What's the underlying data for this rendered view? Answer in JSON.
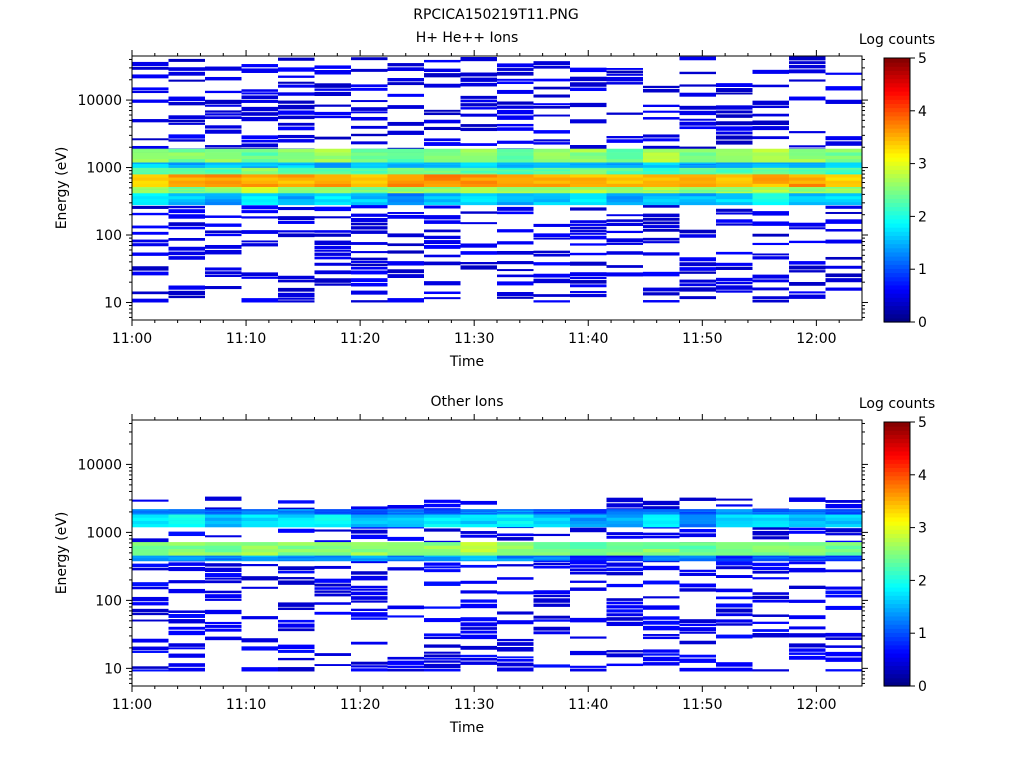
{
  "figure_title": "RPCICA150219T11.PNG",
  "chart_data": [
    {
      "type": "heatmap",
      "title": "H+ He++ Ions",
      "xlabel": "Time",
      "ylabel": "Energy (eV)",
      "x_ticks": [
        "11:00",
        "11:10",
        "11:20",
        "11:30",
        "11:40",
        "11:50",
        "12:00"
      ],
      "x_tick_minutes": [
        0,
        10,
        20,
        30,
        40,
        50,
        60
      ],
      "xlim_minutes": [
        0,
        64
      ],
      "y_ticks": [
        "10",
        "100",
        "1000",
        "10000"
      ],
      "y_tick_values": [
        10,
        100,
        1000,
        10000
      ],
      "ylim": [
        5.5,
        45000
      ],
      "y_scale": "log",
      "time_bins_minutes": [
        1.6,
        4.8,
        8.0,
        11.2,
        14.4,
        17.6,
        20.8,
        24.0,
        27.2,
        30.4,
        33.6,
        36.8,
        40.0,
        43.2,
        46.4,
        49.6,
        52.8,
        56.0,
        59.2,
        62.4
      ],
      "energy_bands": [
        {
          "ev": [
            280,
            420
          ],
          "levels": [
            1.8,
            1.6,
            1.4,
            1.8,
            1.5,
            1.7,
            1.6,
            1.3,
            1.6,
            1.8,
            1.5,
            1.6,
            1.9,
            1.4,
            1.6,
            1.5,
            1.7,
            1.9,
            1.6,
            1.7
          ]
        },
        {
          "ev": [
            420,
            520
          ],
          "levels": [
            2.6,
            2.5,
            2.5,
            2.8,
            2.6,
            2.7,
            2.5,
            2.6,
            2.6,
            2.8,
            2.6,
            2.6,
            2.7,
            2.6,
            2.7,
            2.5,
            2.6,
            2.7,
            2.6,
            2.6
          ]
        },
        {
          "ev": [
            520,
            800
          ],
          "levels": [
            3.3,
            3.6,
            3.7,
            3.6,
            3.5,
            3.6,
            3.4,
            3.6,
            3.7,
            3.6,
            3.5,
            3.6,
            3.5,
            3.5,
            3.4,
            3.5,
            3.4,
            3.5,
            3.6,
            3.4
          ]
        },
        {
          "ev": [
            800,
            1000
          ],
          "levels": [
            2.2,
            2.4,
            2.3,
            2.5,
            2.3,
            2.4,
            2.2,
            2.4,
            2.4,
            2.3,
            2.2,
            2.3,
            2.4,
            2.3,
            2.2,
            2.4,
            2.3,
            2.4,
            2.3,
            2.2
          ]
        },
        {
          "ev": [
            1000,
            1200
          ],
          "levels": [
            1.6,
            1.5,
            1.6,
            1.5,
            1.6,
            1.4,
            1.5,
            1.6,
            1.5,
            1.6,
            1.4,
            1.5,
            1.6,
            1.5,
            1.6,
            1.4,
            1.5,
            1.6,
            1.5,
            1.6
          ]
        },
        {
          "ev": [
            1200,
            1900
          ],
          "levels": [
            2.7,
            2.5,
            2.6,
            2.4,
            2.6,
            2.7,
            2.5,
            2.3,
            2.6,
            2.7,
            2.4,
            2.5,
            2.6,
            2.4,
            2.7,
            2.5,
            2.6,
            2.8,
            2.6,
            2.5
          ]
        }
      ],
      "sparse_level": 0.3,
      "sparse_energy_range": [
        10,
        40000
      ]
    },
    {
      "type": "heatmap",
      "title": "Other Ions",
      "xlabel": "Time",
      "ylabel": "Energy (eV)",
      "x_ticks": [
        "11:00",
        "11:10",
        "11:20",
        "11:30",
        "11:40",
        "11:50",
        "12:00"
      ],
      "x_tick_minutes": [
        0,
        10,
        20,
        30,
        40,
        50,
        60
      ],
      "xlim_minutes": [
        0,
        64
      ],
      "y_ticks": [
        "10",
        "100",
        "1000",
        "10000"
      ],
      "y_tick_values": [
        10,
        100,
        1000,
        10000
      ],
      "ylim": [
        5.5,
        45000
      ],
      "y_scale": "log",
      "time_bins_minutes": [
        1.6,
        4.8,
        8.0,
        11.2,
        14.4,
        17.6,
        20.8,
        24.0,
        27.2,
        30.4,
        33.6,
        36.8,
        40.0,
        43.2,
        46.4,
        49.6,
        52.8,
        56.0,
        59.2,
        62.4
      ],
      "energy_bands": [
        {
          "ev": [
            380,
            460
          ],
          "levels": [
            1.4,
            1.3,
            1.2,
            1.5,
            1.3,
            1.2,
            1.4,
            1.3,
            1.4,
            1.5,
            1.3,
            1.2,
            0.8,
            0.7,
            1.3,
            1.2,
            0.8,
            1.1,
            1.0,
            0.9
          ]
        },
        {
          "ev": [
            460,
            720
          ],
          "levels": [
            2.4,
            2.5,
            2.5,
            2.6,
            2.5,
            2.6,
            2.6,
            2.5,
            2.6,
            2.7,
            2.6,
            2.5,
            2.4,
            2.4,
            2.5,
            2.4,
            2.5,
            2.5,
            2.6,
            2.4
          ]
        },
        {
          "ev": [
            1200,
            1850
          ],
          "levels": [
            1.7,
            1.9,
            1.6,
            1.8,
            1.7,
            1.9,
            1.5,
            1.6,
            1.8,
            1.7,
            1.8,
            1.6,
            1.4,
            1.5,
            1.7,
            1.3,
            1.6,
            1.8,
            1.5,
            1.6
          ]
        },
        {
          "ev": [
            1850,
            2200
          ],
          "levels": [
            1.2,
            1.3,
            1.1,
            1.2,
            1.3,
            1.1,
            1.0,
            1.2,
            1.1,
            1.2,
            1.3,
            1.0,
            0.9,
            1.1,
            1.2,
            1.0,
            1.3,
            1.1,
            1.2,
            1.0
          ]
        }
      ],
      "sparse_level": 0.35,
      "sparse_energy_range": [
        9,
        3000
      ]
    }
  ],
  "colorbar": {
    "title": "Log counts",
    "ticks": [
      "0",
      "1",
      "2",
      "3",
      "4",
      "5"
    ],
    "range": [
      0,
      5
    ],
    "colormap": "jet"
  }
}
